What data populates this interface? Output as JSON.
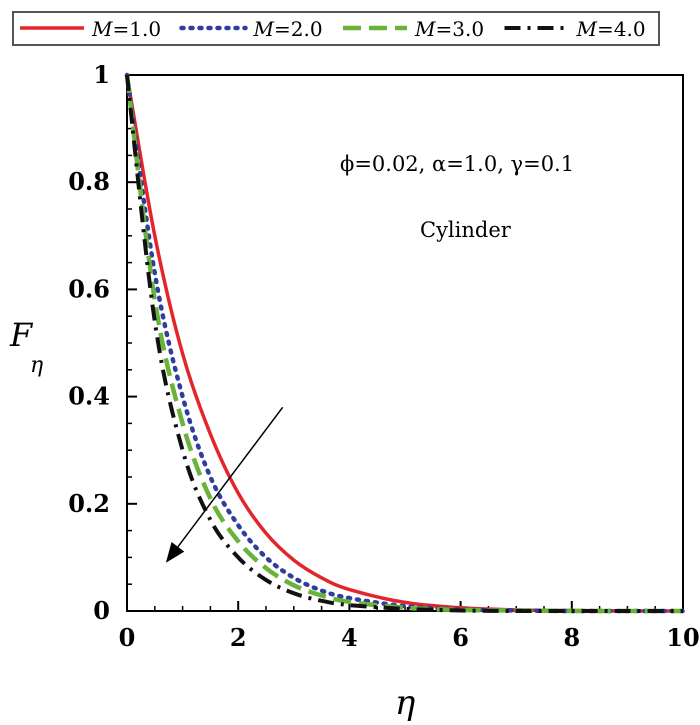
{
  "chart_data": {
    "type": "line",
    "xlabel": "η",
    "ylabel_main": "F",
    "ylabel_sub": "η",
    "xlim": [
      0,
      10
    ],
    "ylim": [
      0,
      1
    ],
    "x_ticks": [
      0,
      2,
      4,
      6,
      8,
      10
    ],
    "x_tick_labels": [
      "0",
      "2",
      "4",
      "6",
      "8",
      "10"
    ],
    "y_ticks": [
      0,
      0.2,
      0.4,
      0.6,
      0.8,
      1
    ],
    "y_tick_labels": [
      "0",
      "0.2",
      "0.4",
      "0.6",
      "0.8",
      "1"
    ],
    "grid": false,
    "legend_position": "top",
    "annotations": {
      "params": "ϕ=0.02, α=1.0, γ=0.1",
      "geometry": "Cylinder"
    },
    "arrow": {
      "from": [
        2.8,
        0.38
      ],
      "to": [
        0.7,
        0.09
      ]
    },
    "series": [
      {
        "name": "M=1.0",
        "legend_var": "M",
        "legend_val": "=1.0",
        "color": "#e3262b",
        "dash": "solid",
        "x": [
          0,
          0.5,
          1,
          1.5,
          2,
          2.5,
          3,
          3.5,
          4,
          5,
          6,
          7,
          8,
          9,
          10
        ],
        "y": [
          1,
          0.7,
          0.48,
          0.33,
          0.22,
          0.145,
          0.095,
          0.062,
          0.04,
          0.016,
          0.006,
          0.002,
          0.001,
          0,
          0
        ]
      },
      {
        "name": "M=2.0",
        "legend_var": "M",
        "legend_val": "=2.0",
        "color": "#2f3e9e",
        "dash": "dotted",
        "x": [
          0,
          0.5,
          1,
          1.5,
          2,
          2.5,
          3,
          3.5,
          4,
          5,
          6,
          7,
          8,
          9,
          10
        ],
        "y": [
          1,
          0.63,
          0.4,
          0.25,
          0.16,
          0.1,
          0.062,
          0.038,
          0.024,
          0.009,
          0.003,
          0.001,
          0,
          0,
          0
        ]
      },
      {
        "name": "M=3.0",
        "legend_var": "M",
        "legend_val": "=3.0",
        "color": "#6ab33a",
        "dash": "dashed",
        "x": [
          0,
          0.5,
          1,
          1.5,
          2,
          2.5,
          3,
          3.5,
          4,
          5,
          6,
          7,
          8,
          9,
          10
        ],
        "y": [
          1,
          0.58,
          0.35,
          0.21,
          0.13,
          0.08,
          0.048,
          0.029,
          0.017,
          0.006,
          0.002,
          0.001,
          0,
          0,
          0
        ]
      },
      {
        "name": "M=4.0",
        "legend_var": "M",
        "legend_val": "=4.0",
        "color": "#111111",
        "dash": "dashdot",
        "x": [
          0,
          0.5,
          1,
          1.5,
          2,
          2.5,
          3,
          3.5,
          4,
          5,
          6,
          7,
          8,
          9,
          10
        ],
        "y": [
          1,
          0.54,
          0.3,
          0.17,
          0.1,
          0.058,
          0.033,
          0.019,
          0.011,
          0.004,
          0.001,
          0,
          0,
          0,
          0
        ]
      }
    ]
  }
}
